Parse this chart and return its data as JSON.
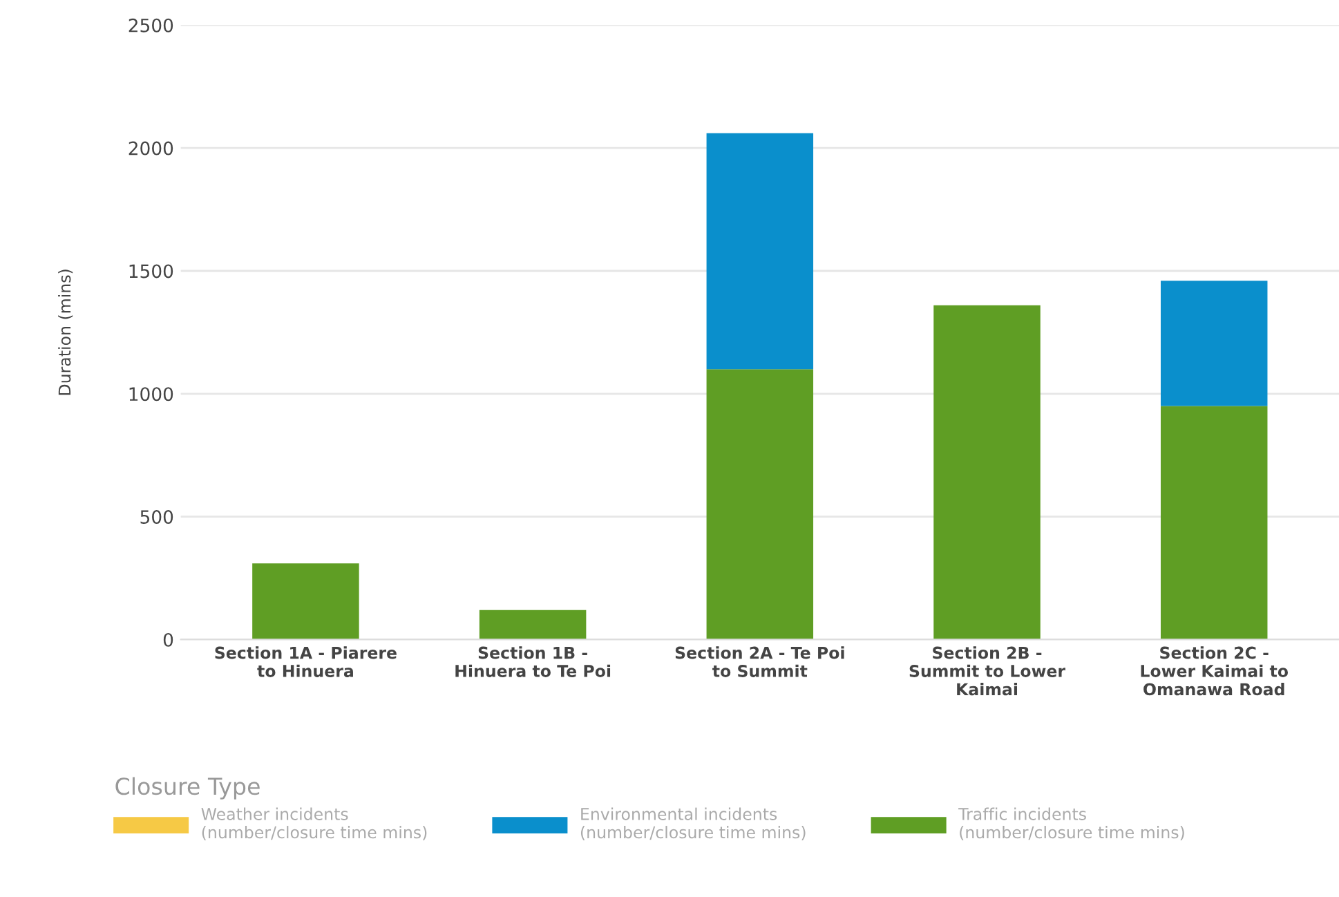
{
  "chart_data": {
    "type": "bar",
    "stacked": true,
    "ylabel": "Duration (mins)",
    "legend_title": "Closure Type",
    "categories": [
      "Section 1A - Piarere\nto Hinuera",
      "Section 1B -\nHinuera to Te Poi",
      "Section 2A - Te Poi\nto Summit",
      "Section 2B -\nSummit to Lower\nKaimai",
      "Section 2C -\nLower Kaimai to\nOmanawa Road"
    ],
    "series": [
      {
        "name": "Traffic incidents\n(number/closure time mins)",
        "color": "#5f9e24",
        "values": [
          310,
          120,
          1100,
          1360,
          950
        ]
      },
      {
        "name": "Environmental incidents\n(number/closure time mins)",
        "color": "#0a8fcc",
        "values": [
          0,
          0,
          960,
          0,
          510
        ]
      },
      {
        "name": "Weather incidents\n(number/closure time mins)",
        "color": "#f6c945",
        "values": [
          0,
          0,
          0,
          0,
          0
        ]
      }
    ],
    "ylim": [
      0,
      2500
    ],
    "yticks": [
      0,
      500,
      1000,
      1500,
      2000,
      2500
    ],
    "grid": "y",
    "legend": "bottom"
  }
}
